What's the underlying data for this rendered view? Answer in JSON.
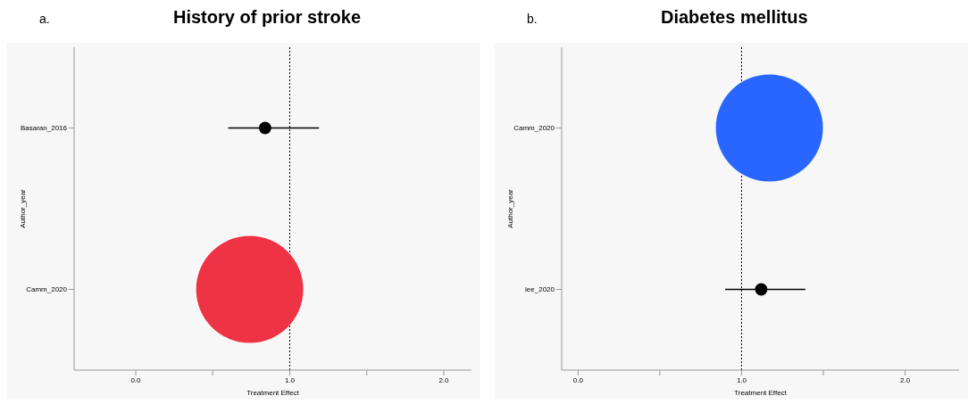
{
  "chart_data": [
    {
      "type": "scatter",
      "title": "History of prior stroke",
      "annotations": [
        "a."
      ],
      "xlabel": "Treatment Effect",
      "ylabel": "Author_year",
      "orientation": "horizontal",
      "categories": [
        "Basaran_2016",
        "Camm_2020"
      ],
      "xlim": [
        -0.4,
        2.18
      ],
      "xticks": [
        {
          "value": 0,
          "label": "0.0"
        },
        {
          "value": 0.5,
          "label": null
        },
        {
          "value": 1,
          "label": "1.0"
        },
        {
          "value": 1.5,
          "label": null
        },
        {
          "value": 2,
          "label": "2.0"
        }
      ],
      "marker": "circle",
      "ref_lines": [
        {
          "axis": "x",
          "value": 1,
          "line_style": "dotted",
          "color": "#000000"
        }
      ],
      "series": [
        {
          "type": "scatter",
          "color": "#000000",
          "values": [
            0.84,
            null
          ],
          "errors": [
            [
              0.6,
              1.19
            ],
            null
          ]
        },
        {
          "type": "bubble",
          "color": "#ee3344",
          "values": [
            null,
            0.74
          ],
          "sizes": [
            null,
            1
          ]
        }
      ]
    },
    {
      "type": "scatter",
      "title": "Diabetes mellitus",
      "annotations": [
        "b."
      ],
      "xlabel": "Treatment Effect",
      "ylabel": "Author_year",
      "orientation": "horizontal",
      "categories": [
        "Camm_2020",
        "lee_2020"
      ],
      "xlim": [
        -0.1,
        2.33
      ],
      "xticks": [
        {
          "value": 0,
          "label": "0.0"
        },
        {
          "value": 0.5,
          "label": null
        },
        {
          "value": 1,
          "label": "1.0"
        },
        {
          "value": 1.5,
          "label": null
        },
        {
          "value": 2,
          "label": "2.0"
        }
      ],
      "marker": "circle",
      "ref_lines": [
        {
          "axis": "x",
          "value": 1,
          "line_style": "dotted",
          "color": "#000000"
        }
      ],
      "series": [
        {
          "type": "bubble",
          "color": "#2966ff",
          "values": [
            1.17,
            null
          ],
          "sizes": [
            1,
            null
          ]
        },
        {
          "type": "scatter",
          "color": "#000000",
          "values": [
            null,
            1.12
          ],
          "errors": [
            null,
            [
              0.9,
              1.39
            ]
          ]
        }
      ]
    }
  ]
}
